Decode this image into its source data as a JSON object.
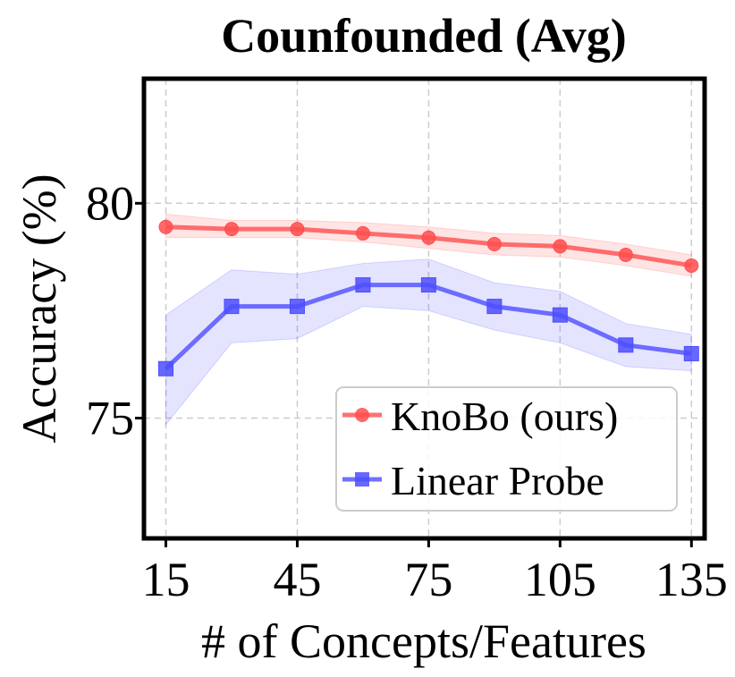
{
  "chart_data": {
    "type": "line",
    "title": "Counfounded (Avg)",
    "xlabel": "# of Concepts/Features",
    "ylabel": "Accuracy (%)",
    "x": [
      15,
      30,
      45,
      60,
      75,
      90,
      105,
      120,
      135
    ],
    "xticks": [
      15,
      45,
      75,
      105,
      135
    ],
    "yticks": [
      75,
      80
    ],
    "xlim": [
      10,
      138
    ],
    "ylim": [
      72.2,
      82.9
    ],
    "grid": true,
    "legend_position": "lower-right",
    "series": [
      {
        "name": "KnoBo (ours)",
        "color": "#ff4d4d",
        "marker": "circle",
        "values": [
          79.45,
          79.4,
          79.4,
          79.3,
          79.2,
          79.05,
          79.0,
          78.8,
          78.55
        ],
        "lower": [
          79.2,
          79.2,
          79.2,
          79.1,
          78.95,
          78.8,
          78.75,
          78.55,
          78.3
        ],
        "upper": [
          79.75,
          79.6,
          79.6,
          79.55,
          79.45,
          79.3,
          79.25,
          79.05,
          78.8
        ]
      },
      {
        "name": "Linear Probe",
        "color": "#4d4dff",
        "marker": "square",
        "values": [
          76.15,
          77.6,
          77.6,
          78.1,
          78.1,
          77.6,
          77.4,
          76.7,
          76.5
        ],
        "lower": [
          74.85,
          76.75,
          76.85,
          77.6,
          77.5,
          77.05,
          76.75,
          76.2,
          76.1
        ],
        "upper": [
          77.4,
          78.45,
          78.35,
          78.6,
          78.7,
          78.15,
          77.95,
          77.2,
          76.95
        ]
      }
    ]
  }
}
